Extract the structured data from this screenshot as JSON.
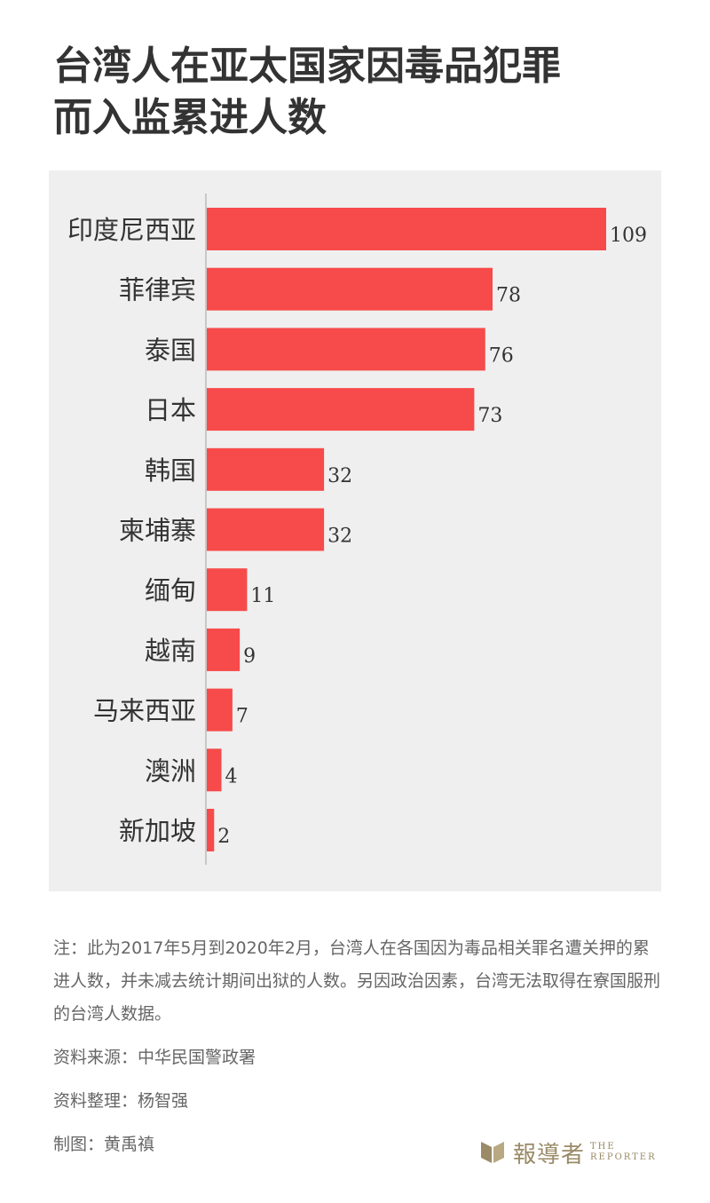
{
  "title": {
    "line1": "台湾人在亚太国家因毒品犯罪",
    "line2": "而入监累进人数"
  },
  "chart_data": {
    "type": "bar",
    "orientation": "horizontal",
    "categories": [
      "印度尼西亚",
      "菲律宾",
      "泰国",
      "日本",
      "韩国",
      "柬埔寨",
      "缅甸",
      "越南",
      "马来西亚",
      "澳洲",
      "新加坡"
    ],
    "values": [
      109,
      78,
      76,
      73,
      32,
      32,
      11,
      9,
      7,
      4,
      2
    ],
    "title": "",
    "xlabel": "",
    "ylabel": "",
    "xlim": [
      0,
      109
    ],
    "grid": false,
    "bar_color": "#f74a4a",
    "background": "#efefef"
  },
  "notes": {
    "note": "注：此为2017年5月到2020年2月，台湾人在各国因为毒品相关罪名遭关押的累进人数，并未减去统计期间出狱的人数。另因政治因素，台湾无法取得在寮国服刑的台湾人数据。",
    "source": "资料来源：中华民国警政署",
    "compiled": "资料整理：杨智强",
    "graphic": "制图：黄禹禛"
  },
  "logo": {
    "cn": "報導者",
    "en_line1": "THE",
    "en_line2": "REPORTER",
    "color": "#9a8a66"
  }
}
